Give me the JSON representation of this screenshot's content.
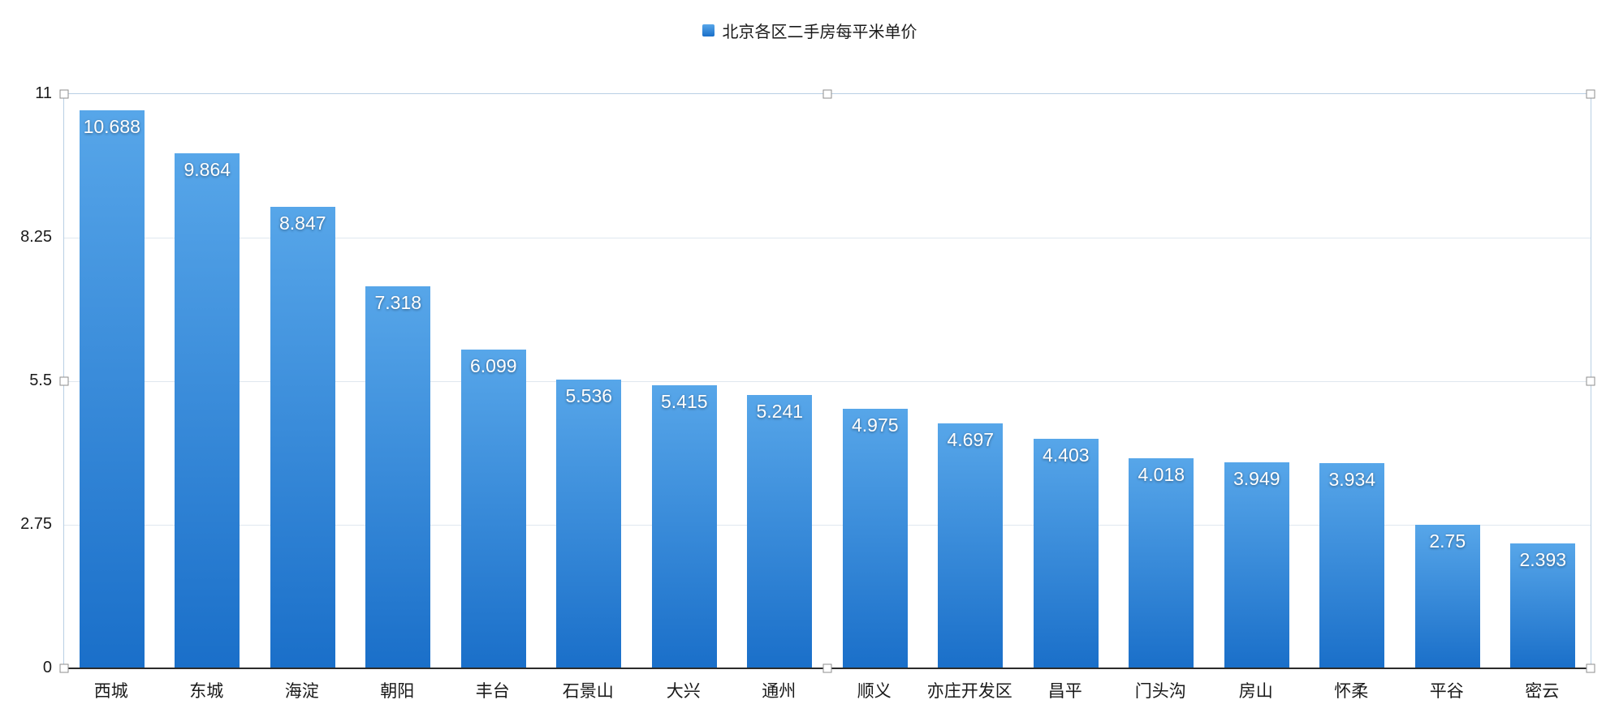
{
  "chart_data": {
    "type": "bar",
    "title": "北京各区二手房每平米单价",
    "categories": [
      "西城",
      "东城",
      "海淀",
      "朝阳",
      "丰台",
      "石景山",
      "大兴",
      "通州",
      "顺义",
      "亦庄开发区",
      "昌平",
      "门头沟",
      "房山",
      "怀柔",
      "平谷",
      "密云"
    ],
    "values": [
      10.688,
      9.864,
      8.847,
      7.318,
      6.099,
      5.536,
      5.415,
      5.241,
      4.975,
      4.697,
      4.403,
      4.018,
      3.949,
      3.934,
      2.75,
      2.393
    ],
    "value_labels": [
      "10.688",
      "9.864",
      "8.847",
      "7.318",
      "6.099",
      "5.536",
      "5.415",
      "5.241",
      "4.975",
      "4.697",
      "4.403",
      "4.018",
      "3.949",
      "3.934",
      "2.75",
      "2.393"
    ],
    "xlabel": "",
    "ylabel": "",
    "ylim": [
      0,
      11
    ],
    "yticks": [
      0,
      2.75,
      5.5,
      8.25,
      11
    ],
    "ytick_labels": [
      "0",
      "2.75",
      "5.5",
      "8.25",
      "11"
    ],
    "grid": true,
    "legend_position": "top"
  },
  "colors": {
    "bar_gradient_top": "#57a6e9",
    "bar_gradient_bottom": "#1a6fc9",
    "gridline": "#dfe7ef",
    "plot_border": "#b9cfe4",
    "axis_line": "#2b2b2b",
    "value_label_text": "#ffffff",
    "axis_label_text": "#1a1a1a"
  },
  "selection": {
    "handles": [
      "top-left",
      "top-middle",
      "top-right",
      "middle-left",
      "middle-right",
      "bottom-left",
      "bottom-middle",
      "bottom-right"
    ]
  }
}
